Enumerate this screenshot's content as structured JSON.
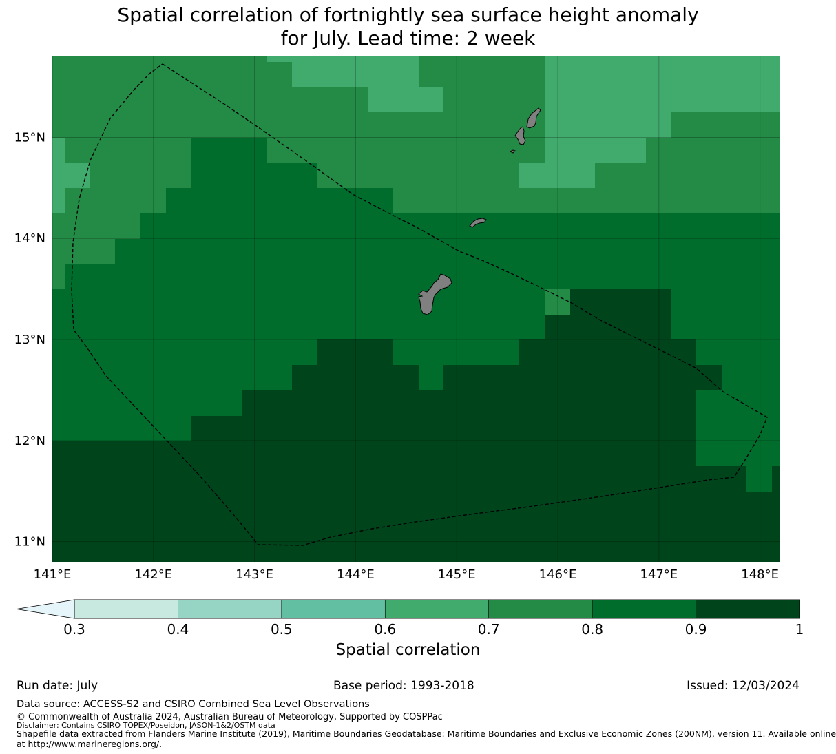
{
  "title_line1": "Spatial correlation of fortnightly sea surface height anomaly",
  "title_line2": "for July. Lead time: 2 week",
  "map": {
    "lon_range": [
      141.0,
      148.2
    ],
    "lat_range": [
      10.8,
      15.8
    ],
    "lon_ticks": [
      141,
      142,
      143,
      144,
      145,
      146,
      147,
      148
    ],
    "lon_tick_labels": [
      "141°E",
      "142°E",
      "143°E",
      "144°E",
      "145°E",
      "146°E",
      "147°E",
      "148°E"
    ],
    "lat_ticks": [
      11,
      12,
      13,
      14,
      15
    ],
    "lat_tick_labels": [
      "11°N",
      "12°N",
      "13°N",
      "14°N",
      "15°N"
    ],
    "gridlines": true,
    "land_color": "#808080",
    "eez_boundary_style": "dashed black",
    "field": {
      "description_only": false,
      "bands": [
        {
          "class": "0.6-0.7",
          "color": "#41ab6d"
        },
        {
          "class": "0.7-0.8",
          "color": "#238b45"
        },
        {
          "class": "0.8-0.9",
          "color": "#006d2c"
        },
        {
          "class": "0.9-1",
          "color": "#00441b"
        }
      ]
    }
  },
  "colorbar": {
    "bounds": [
      0.3,
      0.4,
      0.5,
      0.6,
      0.7,
      0.8,
      0.9,
      1.0
    ],
    "tick_labels": [
      "0.3",
      "0.4",
      "0.5",
      "0.6",
      "0.7",
      "0.8",
      "0.9",
      "1"
    ],
    "colors": [
      "#c7e9e0",
      "#96d5c4",
      "#62bfa1",
      "#41ab6d",
      "#238b45",
      "#006d2c",
      "#00441b"
    ],
    "extend_color": "#e5f5f9",
    "extend": "min",
    "label": "Spatial correlation"
  },
  "footer": {
    "run_date": "Run date: July",
    "base_period": "Base period: 1993-2018",
    "issued": "Issued: 12/03/2024",
    "data_source": "Data source: ACCESS-S2 and CSIRO Combined Sea Level Observations",
    "copyright": "© Commonwealth of Australia 2024, Australian Bureau of Meteorology, Supported by COSPPac",
    "disclaimer": "Disclaimer: Contains CSIRO TOPEX/Poseidon, JASON-1&2/OSTM data",
    "shapefile_line1": "Shapefile data extracted from Flanders Marine Institute (2019), Maritime Boundaries Geodatabase: Maritime Boundaries and Exclusive Economic Zones (200NM), version 11. Available online",
    "shapefile_line2": "at http://www.marineregions.org/."
  }
}
